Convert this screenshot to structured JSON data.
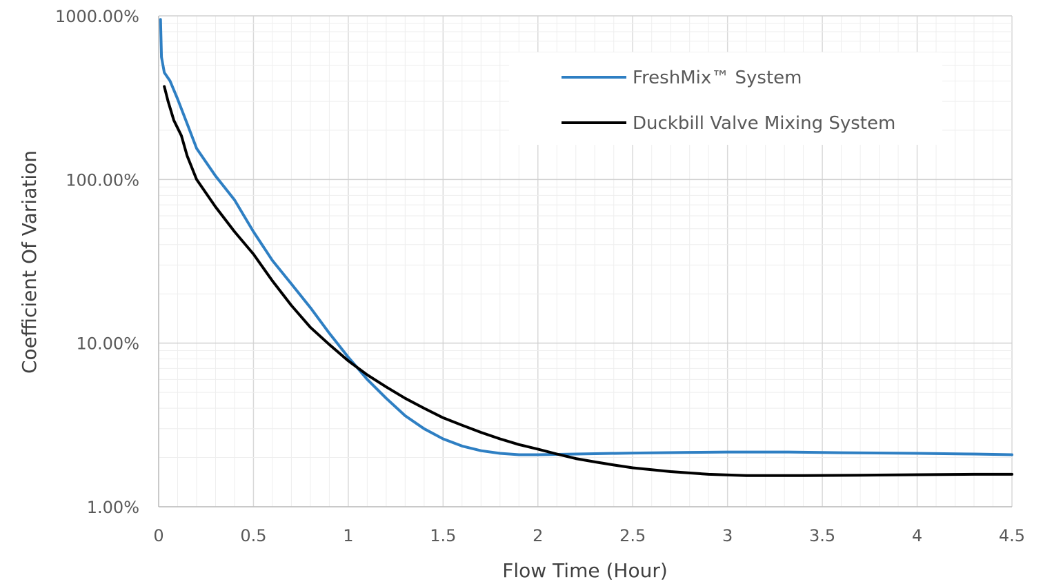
{
  "chart_data": {
    "type": "line",
    "title": "",
    "xlabel": "Flow Time (Hour)",
    "ylabel": "Coefficient Of Variation",
    "xlim": [
      0,
      4.5
    ],
    "ylim": [
      1,
      1000
    ],
    "yscale": "log",
    "x_ticks": [
      0,
      0.5,
      1,
      1.5,
      2,
      2.5,
      3,
      3.5,
      4,
      4.5
    ],
    "x_tick_labels": [
      "0",
      "0.5",
      "1",
      "1.5",
      "2",
      "2.5",
      "3",
      "3.5",
      "4",
      "4.5"
    ],
    "y_ticks": [
      1,
      10,
      100,
      1000
    ],
    "y_tick_labels": [
      "1.00%",
      "10.00%",
      "100.00%",
      "1000.00%"
    ],
    "grid": true,
    "legend_position": "top-right",
    "series": [
      {
        "name": "FreshMix™ System",
        "color": "#2E7FC3",
        "points": [
          [
            0.01,
            950
          ],
          [
            0.015,
            560
          ],
          [
            0.03,
            450
          ],
          [
            0.06,
            400
          ],
          [
            0.1,
            310
          ],
          [
            0.15,
            220
          ],
          [
            0.2,
            155
          ],
          [
            0.3,
            105
          ],
          [
            0.4,
            75
          ],
          [
            0.5,
            48
          ],
          [
            0.6,
            32
          ],
          [
            0.7,
            23
          ],
          [
            0.8,
            16.5
          ],
          [
            0.9,
            11.5
          ],
          [
            1.0,
            8.2
          ],
          [
            1.1,
            6.0
          ],
          [
            1.2,
            4.6
          ],
          [
            1.3,
            3.6
          ],
          [
            1.4,
            3.0
          ],
          [
            1.5,
            2.6
          ],
          [
            1.6,
            2.35
          ],
          [
            1.7,
            2.2
          ],
          [
            1.8,
            2.12
          ],
          [
            1.9,
            2.08
          ],
          [
            2.0,
            2.08
          ],
          [
            2.2,
            2.1
          ],
          [
            2.5,
            2.13
          ],
          [
            2.8,
            2.15
          ],
          [
            3.0,
            2.16
          ],
          [
            3.3,
            2.16
          ],
          [
            3.6,
            2.14
          ],
          [
            4.0,
            2.12
          ],
          [
            4.3,
            2.1
          ],
          [
            4.5,
            2.08
          ]
        ]
      },
      {
        "name": "Duckbill Valve Mixing System",
        "color": "#000000",
        "points": [
          [
            0.03,
            370
          ],
          [
            0.05,
            300
          ],
          [
            0.08,
            230
          ],
          [
            0.12,
            185
          ],
          [
            0.15,
            140
          ],
          [
            0.2,
            100
          ],
          [
            0.3,
            68
          ],
          [
            0.4,
            48
          ],
          [
            0.5,
            35
          ],
          [
            0.6,
            24
          ],
          [
            0.7,
            17
          ],
          [
            0.8,
            12.5
          ],
          [
            0.9,
            9.8
          ],
          [
            1.0,
            7.8
          ],
          [
            1.1,
            6.4
          ],
          [
            1.2,
            5.4
          ],
          [
            1.3,
            4.6
          ],
          [
            1.4,
            4.0
          ],
          [
            1.5,
            3.5
          ],
          [
            1.6,
            3.15
          ],
          [
            1.7,
            2.85
          ],
          [
            1.8,
            2.6
          ],
          [
            1.9,
            2.4
          ],
          [
            2.0,
            2.25
          ],
          [
            2.1,
            2.1
          ],
          [
            2.2,
            1.97
          ],
          [
            2.3,
            1.88
          ],
          [
            2.4,
            1.8
          ],
          [
            2.5,
            1.73
          ],
          [
            2.7,
            1.64
          ],
          [
            2.9,
            1.58
          ],
          [
            3.1,
            1.55
          ],
          [
            3.4,
            1.55
          ],
          [
            3.7,
            1.56
          ],
          [
            4.0,
            1.57
          ],
          [
            4.3,
            1.58
          ],
          [
            4.5,
            1.58
          ]
        ]
      }
    ]
  }
}
